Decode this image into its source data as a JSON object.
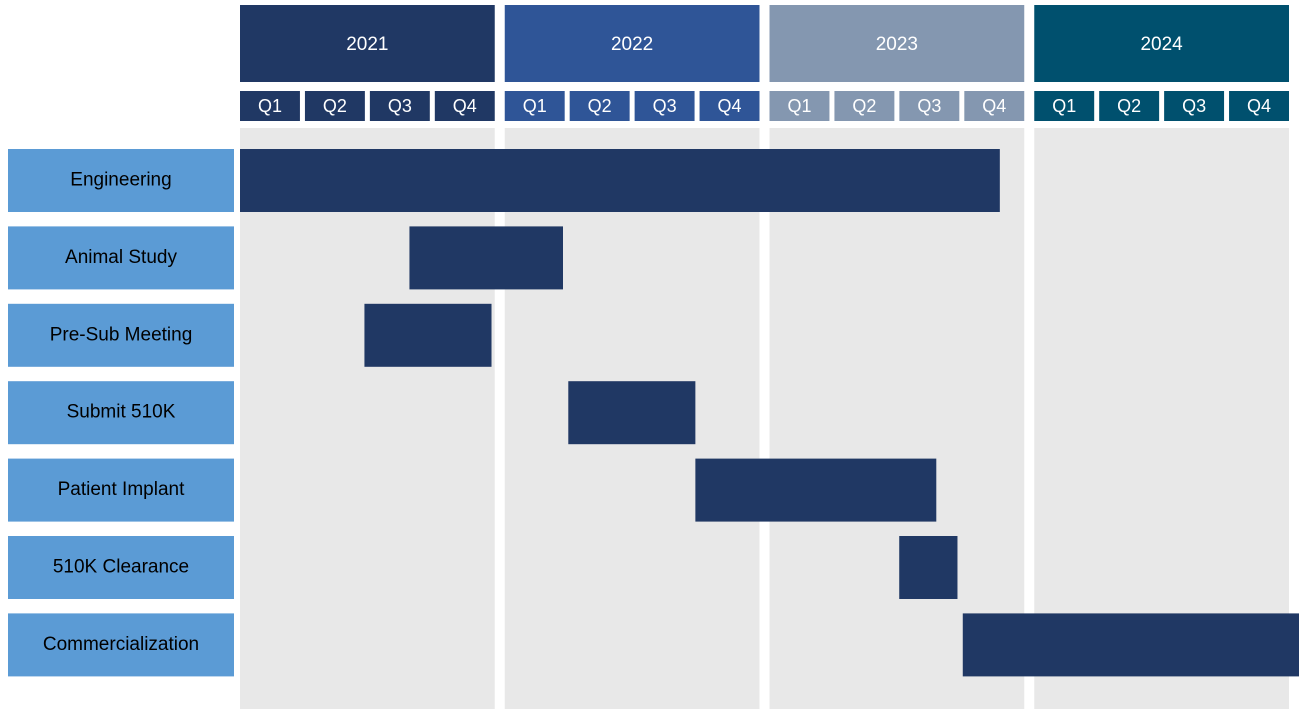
{
  "chart_data": {
    "type": "gantt",
    "xlim": [
      2021,
      2025
    ],
    "years": [
      {
        "label": "2021",
        "color": "#203864"
      },
      {
        "label": "2022",
        "color": "#2f5597"
      },
      {
        "label": "2023",
        "color": "#8497b0"
      },
      {
        "label": "2024",
        "color": "#00506e"
      }
    ],
    "quarters": [
      "Q1",
      "Q2",
      "Q3",
      "Q4"
    ],
    "bar_color": "#203864",
    "label_color": "#5b9bd5",
    "tasks": [
      {
        "name": "Engineering",
        "start": 2021.0,
        "end": 2023.87
      },
      {
        "name": "Animal Study",
        "start": 2021.64,
        "end": 2022.22
      },
      {
        "name": "Pre-Sub Meeting",
        "start": 2021.47,
        "end": 2021.95
      },
      {
        "name": "Submit 510K",
        "start": 2022.24,
        "end": 2022.72
      },
      {
        "name": "Patient Implant",
        "start": 2022.72,
        "end": 2023.63
      },
      {
        "name": "510K Clearance",
        "start": 2023.49,
        "end": 2023.71
      },
      {
        "name": "Commercialization",
        "start": 2023.73,
        "end": 2025.0
      }
    ]
  }
}
